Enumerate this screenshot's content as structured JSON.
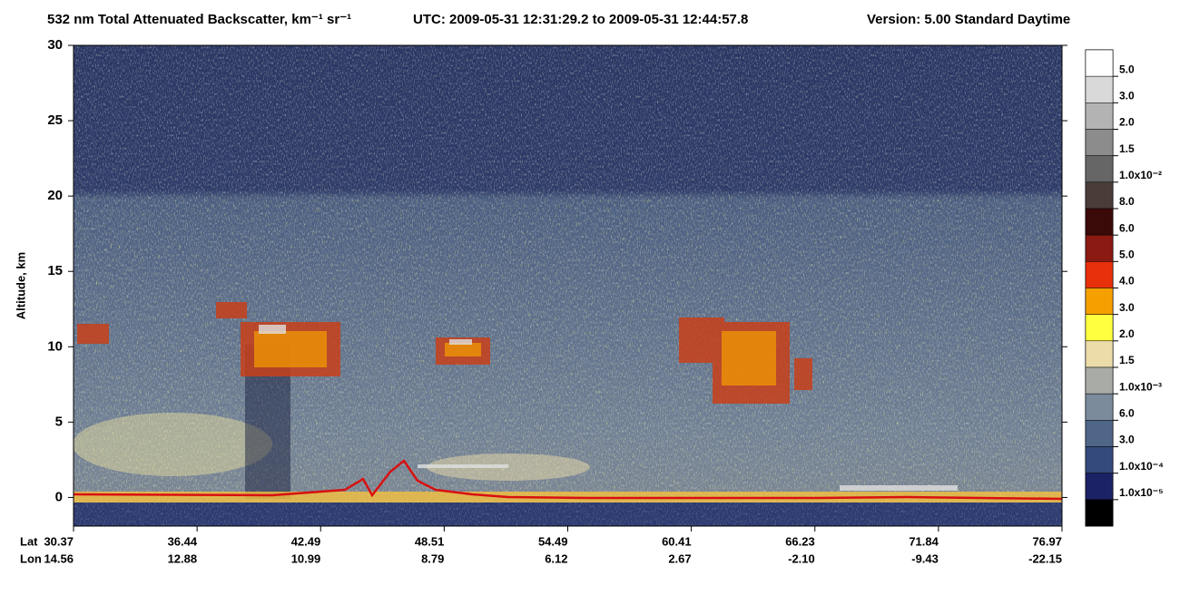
{
  "chart_data": {
    "type": "curtain",
    "title": "532 nm Total Attenuated Backscatter, km⁻¹ sr⁻¹",
    "time_range": "UTC:  2009-05-31 12:31:29.2  to  2009-05-31 12:44:57.8",
    "version": "Version: 5.00  Standard  Daytime",
    "ylabel": "Altitude, km",
    "ylim": [
      -1.9,
      30
    ],
    "yticks": [
      0,
      5,
      10,
      15,
      20,
      25,
      30
    ],
    "lat_label": "Lat",
    "lon_label": "Lon",
    "lat": [
      "30.37",
      "36.44",
      "42.49",
      "48.51",
      "54.49",
      "60.41",
      "66.23",
      "71.84",
      "76.97"
    ],
    "lon": [
      "14.56",
      "12.88",
      "10.99",
      "8.79",
      "6.12",
      "2.67",
      "-2.10",
      "-9.43",
      "-22.15"
    ],
    "colorbar_colors": [
      "#ffffff",
      "#d9d9d9",
      "#b3b3b3",
      "#8c8c8c",
      "#666666",
      "#4a3c38",
      "#3a0a08",
      "#8a1a12",
      "#e8300a",
      "#f5a000",
      "#ffff40",
      "#ecdcaa",
      "#a8aba6",
      "#7b8b9b",
      "#4f6688",
      "#344a7c",
      "#1c2266",
      "#000000"
    ],
    "colorbar_labels": [
      "5.0",
      "3.0",
      "2.0",
      "1.5",
      "1.0x10⁻²",
      "8.0",
      "6.0",
      "5.0",
      "4.0",
      "3.0",
      "2.0",
      "1.5",
      "1.0x10⁻³",
      "6.0",
      "3.0",
      "1.0x10⁻⁴",
      "1.0x10⁻⁵"
    ]
  }
}
